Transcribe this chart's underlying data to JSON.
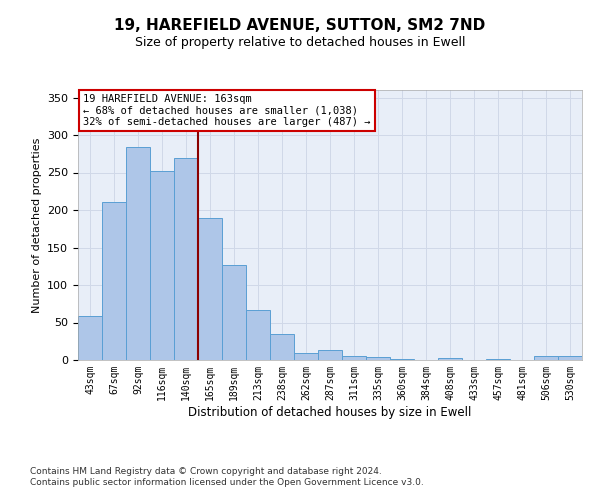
{
  "title": "19, HAREFIELD AVENUE, SUTTON, SM2 7ND",
  "subtitle": "Size of property relative to detached houses in Ewell",
  "xlabel": "Distribution of detached houses by size in Ewell",
  "ylabel": "Number of detached properties",
  "categories": [
    "43sqm",
    "67sqm",
    "92sqm",
    "116sqm",
    "140sqm",
    "165sqm",
    "189sqm",
    "213sqm",
    "238sqm",
    "262sqm",
    "287sqm",
    "311sqm",
    "335sqm",
    "360sqm",
    "384sqm",
    "408sqm",
    "433sqm",
    "457sqm",
    "481sqm",
    "506sqm",
    "530sqm"
  ],
  "values": [
    59,
    211,
    284,
    252,
    270,
    189,
    127,
    67,
    35,
    10,
    13,
    6,
    4,
    1,
    0,
    3,
    0,
    1,
    0,
    5,
    5
  ],
  "bar_color": "#aec6e8",
  "bar_edge_color": "#5a9fd4",
  "vline_color": "#8b0000",
  "annotation_text": "19 HAREFIELD AVENUE: 163sqm\n← 68% of detached houses are smaller (1,038)\n32% of semi-detached houses are larger (487) →",
  "annotation_box_color": "white",
  "annotation_box_edge_color": "#cc0000",
  "ylim": [
    0,
    360
  ],
  "yticks": [
    0,
    50,
    100,
    150,
    200,
    250,
    300,
    350
  ],
  "grid_color": "#d0d8e8",
  "background_color": "#e8eef8",
  "footer_line1": "Contains HM Land Registry data © Crown copyright and database right 2024.",
  "footer_line2": "Contains public sector information licensed under the Open Government Licence v3.0."
}
